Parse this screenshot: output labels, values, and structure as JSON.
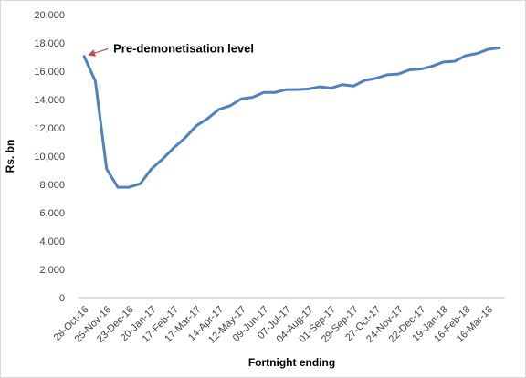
{
  "chart_data": {
    "type": "line",
    "title": "",
    "xlabel": "Fortnight ending",
    "ylabel": "Rs. bn",
    "ylim": [
      0,
      20000
    ],
    "yticks": [
      "0",
      "2,000",
      "4,000",
      "6,000",
      "8,000",
      "10,000",
      "12,000",
      "14,000",
      "16,000",
      "18,000",
      "20,000"
    ],
    "grid": false,
    "legend": "none",
    "line_color": "#4f81bd",
    "annotation": {
      "text": "Pre-demonetisation level",
      "arrow_color": "#c0504d",
      "target_x": "28-Oct-16",
      "target_y": 17000
    },
    "xtick_labels": [
      "28-Oct-16",
      "25-Nov-16",
      "23-Dec-16",
      "20-Jan-17",
      "17-Feb-17",
      "17-Mar-17",
      "14-Apr-17",
      "12-May-17",
      "09-Jun-17",
      "07-Jul-17",
      "04-Aug-17",
      "01-Sep-17",
      "29-Sep-17",
      "27-Oct-17",
      "24-Nov-17",
      "22-Dec-17",
      "19-Jan-18",
      "16-Feb-18",
      "16-Mar-18"
    ],
    "x": [
      "28-Oct-16",
      "11-Nov-16",
      "25-Nov-16",
      "09-Dec-16",
      "23-Dec-16",
      "06-Jan-17",
      "20-Jan-17",
      "03-Feb-17",
      "17-Feb-17",
      "03-Mar-17",
      "17-Mar-17",
      "31-Mar-17",
      "14-Apr-17",
      "28-Apr-17",
      "12-May-17",
      "26-May-17",
      "09-Jun-17",
      "23-Jun-17",
      "07-Jul-17",
      "21-Jul-17",
      "04-Aug-17",
      "18-Aug-17",
      "01-Sep-17",
      "15-Sep-17",
      "29-Sep-17",
      "13-Oct-17",
      "27-Oct-17",
      "10-Nov-17",
      "24-Nov-17",
      "08-Dec-17",
      "22-Dec-17",
      "05-Jan-18",
      "19-Jan-18",
      "02-Feb-18",
      "16-Feb-18",
      "02-Mar-18",
      "16-Mar-18",
      "30-Mar-18"
    ],
    "series": [
      {
        "values": [
          17050,
          15300,
          9100,
          7800,
          7800,
          8050,
          9100,
          9800,
          10600,
          11300,
          12150,
          12650,
          13300,
          13550,
          14050,
          14150,
          14500,
          14500,
          14700,
          14700,
          14750,
          14900,
          14800,
          15050,
          14950,
          15350,
          15500,
          15750,
          15800,
          16100,
          16150,
          16350,
          16650,
          16700,
          17100,
          17250,
          17550,
          17650
        ]
      }
    ]
  }
}
